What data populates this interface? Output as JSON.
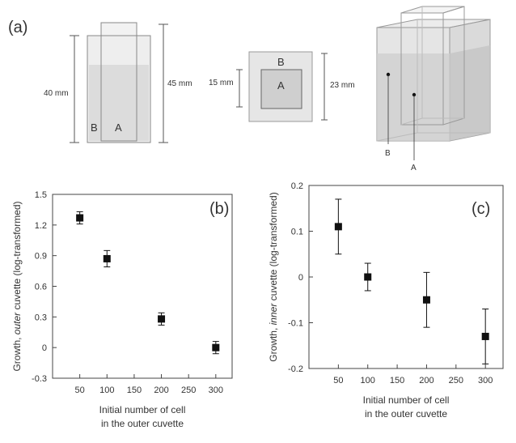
{
  "panel_labels": {
    "a": "(a)",
    "b": "(b)",
    "c": "(c)"
  },
  "diagram": {
    "side_view": {
      "height_outer": "40 mm",
      "height_total": "45 mm",
      "label_b": "B",
      "label_a": "A"
    },
    "top_view": {
      "inner_size": "15 mm",
      "outer_size": "23 mm",
      "label_b": "B",
      "label_a": "A"
    },
    "iso_view": {
      "label_b": "B",
      "label_a": "A"
    }
  },
  "chart_data": [
    {
      "type": "scatter",
      "panel": "(b)",
      "xlabel": "Initial number of cell\nin the outer cuvette",
      "ylabel": "Growth, outer cuvette (log-transformed)",
      "xlim": [
        0,
        330
      ],
      "ylim": [
        -0.3,
        1.5
      ],
      "xticks": [
        50,
        100,
        150,
        200,
        250,
        300
      ],
      "yticks": [
        -0.3,
        0,
        0.3,
        0.6,
        0.9,
        1.2,
        1.5
      ],
      "ytick_labels": [
        "-0.3",
        "0",
        "0.3",
        "0.6",
        "0.9",
        "1.2",
        "1.5"
      ],
      "grid": false,
      "points": [
        {
          "x": 50,
          "y": 1.27,
          "err": 0.06
        },
        {
          "x": 100,
          "y": 0.87,
          "err": 0.08
        },
        {
          "x": 200,
          "y": 0.28,
          "err": 0.06
        },
        {
          "x": 300,
          "y": 0.0,
          "err": 0.06
        }
      ]
    },
    {
      "type": "scatter",
      "panel": "(c)",
      "xlabel": "Initial number of cell\nin the outer cuvette",
      "ylabel": "Growth, inner cuvette (log-transformed)",
      "xlim": [
        0,
        330
      ],
      "ylim": [
        -0.2,
        0.2
      ],
      "xticks": [
        50,
        100,
        150,
        200,
        250,
        300
      ],
      "yticks": [
        -0.2,
        -0.1,
        0,
        0.1,
        0.2
      ],
      "ytick_labels": [
        "-0.2",
        "-0.1",
        "0",
        "0.1",
        "0.2"
      ],
      "grid": false,
      "points": [
        {
          "x": 50,
          "y": 0.11,
          "err": 0.06
        },
        {
          "x": 100,
          "y": 0.0,
          "err": 0.03
        },
        {
          "x": 200,
          "y": -0.05,
          "err": 0.06
        },
        {
          "x": 300,
          "y": -0.13,
          "err": 0.06
        }
      ]
    }
  ]
}
